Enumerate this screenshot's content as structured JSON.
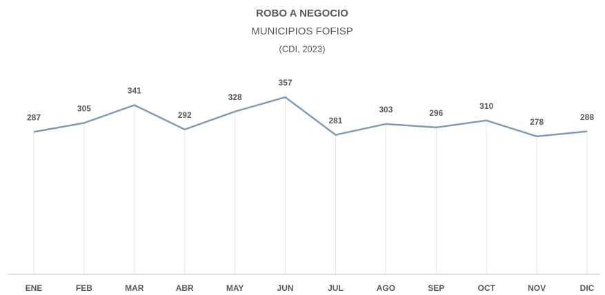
{
  "chart_data": {
    "type": "line",
    "title": "ROBO A NEGOCIO",
    "subtitle": "MUNICIPIOS FOFISP",
    "note": "(CDI, 2023)",
    "categories": [
      "ENE",
      "FEB",
      "MAR",
      "ABR",
      "MAY",
      "JUN",
      "JUL",
      "AGO",
      "SEP",
      "OCT",
      "NOV",
      "DIC"
    ],
    "values": [
      287,
      305,
      341,
      292,
      328,
      357,
      281,
      303,
      296,
      310,
      278,
      288
    ],
    "color": "#7f9bb8",
    "ylim": [
      0,
      400
    ]
  }
}
